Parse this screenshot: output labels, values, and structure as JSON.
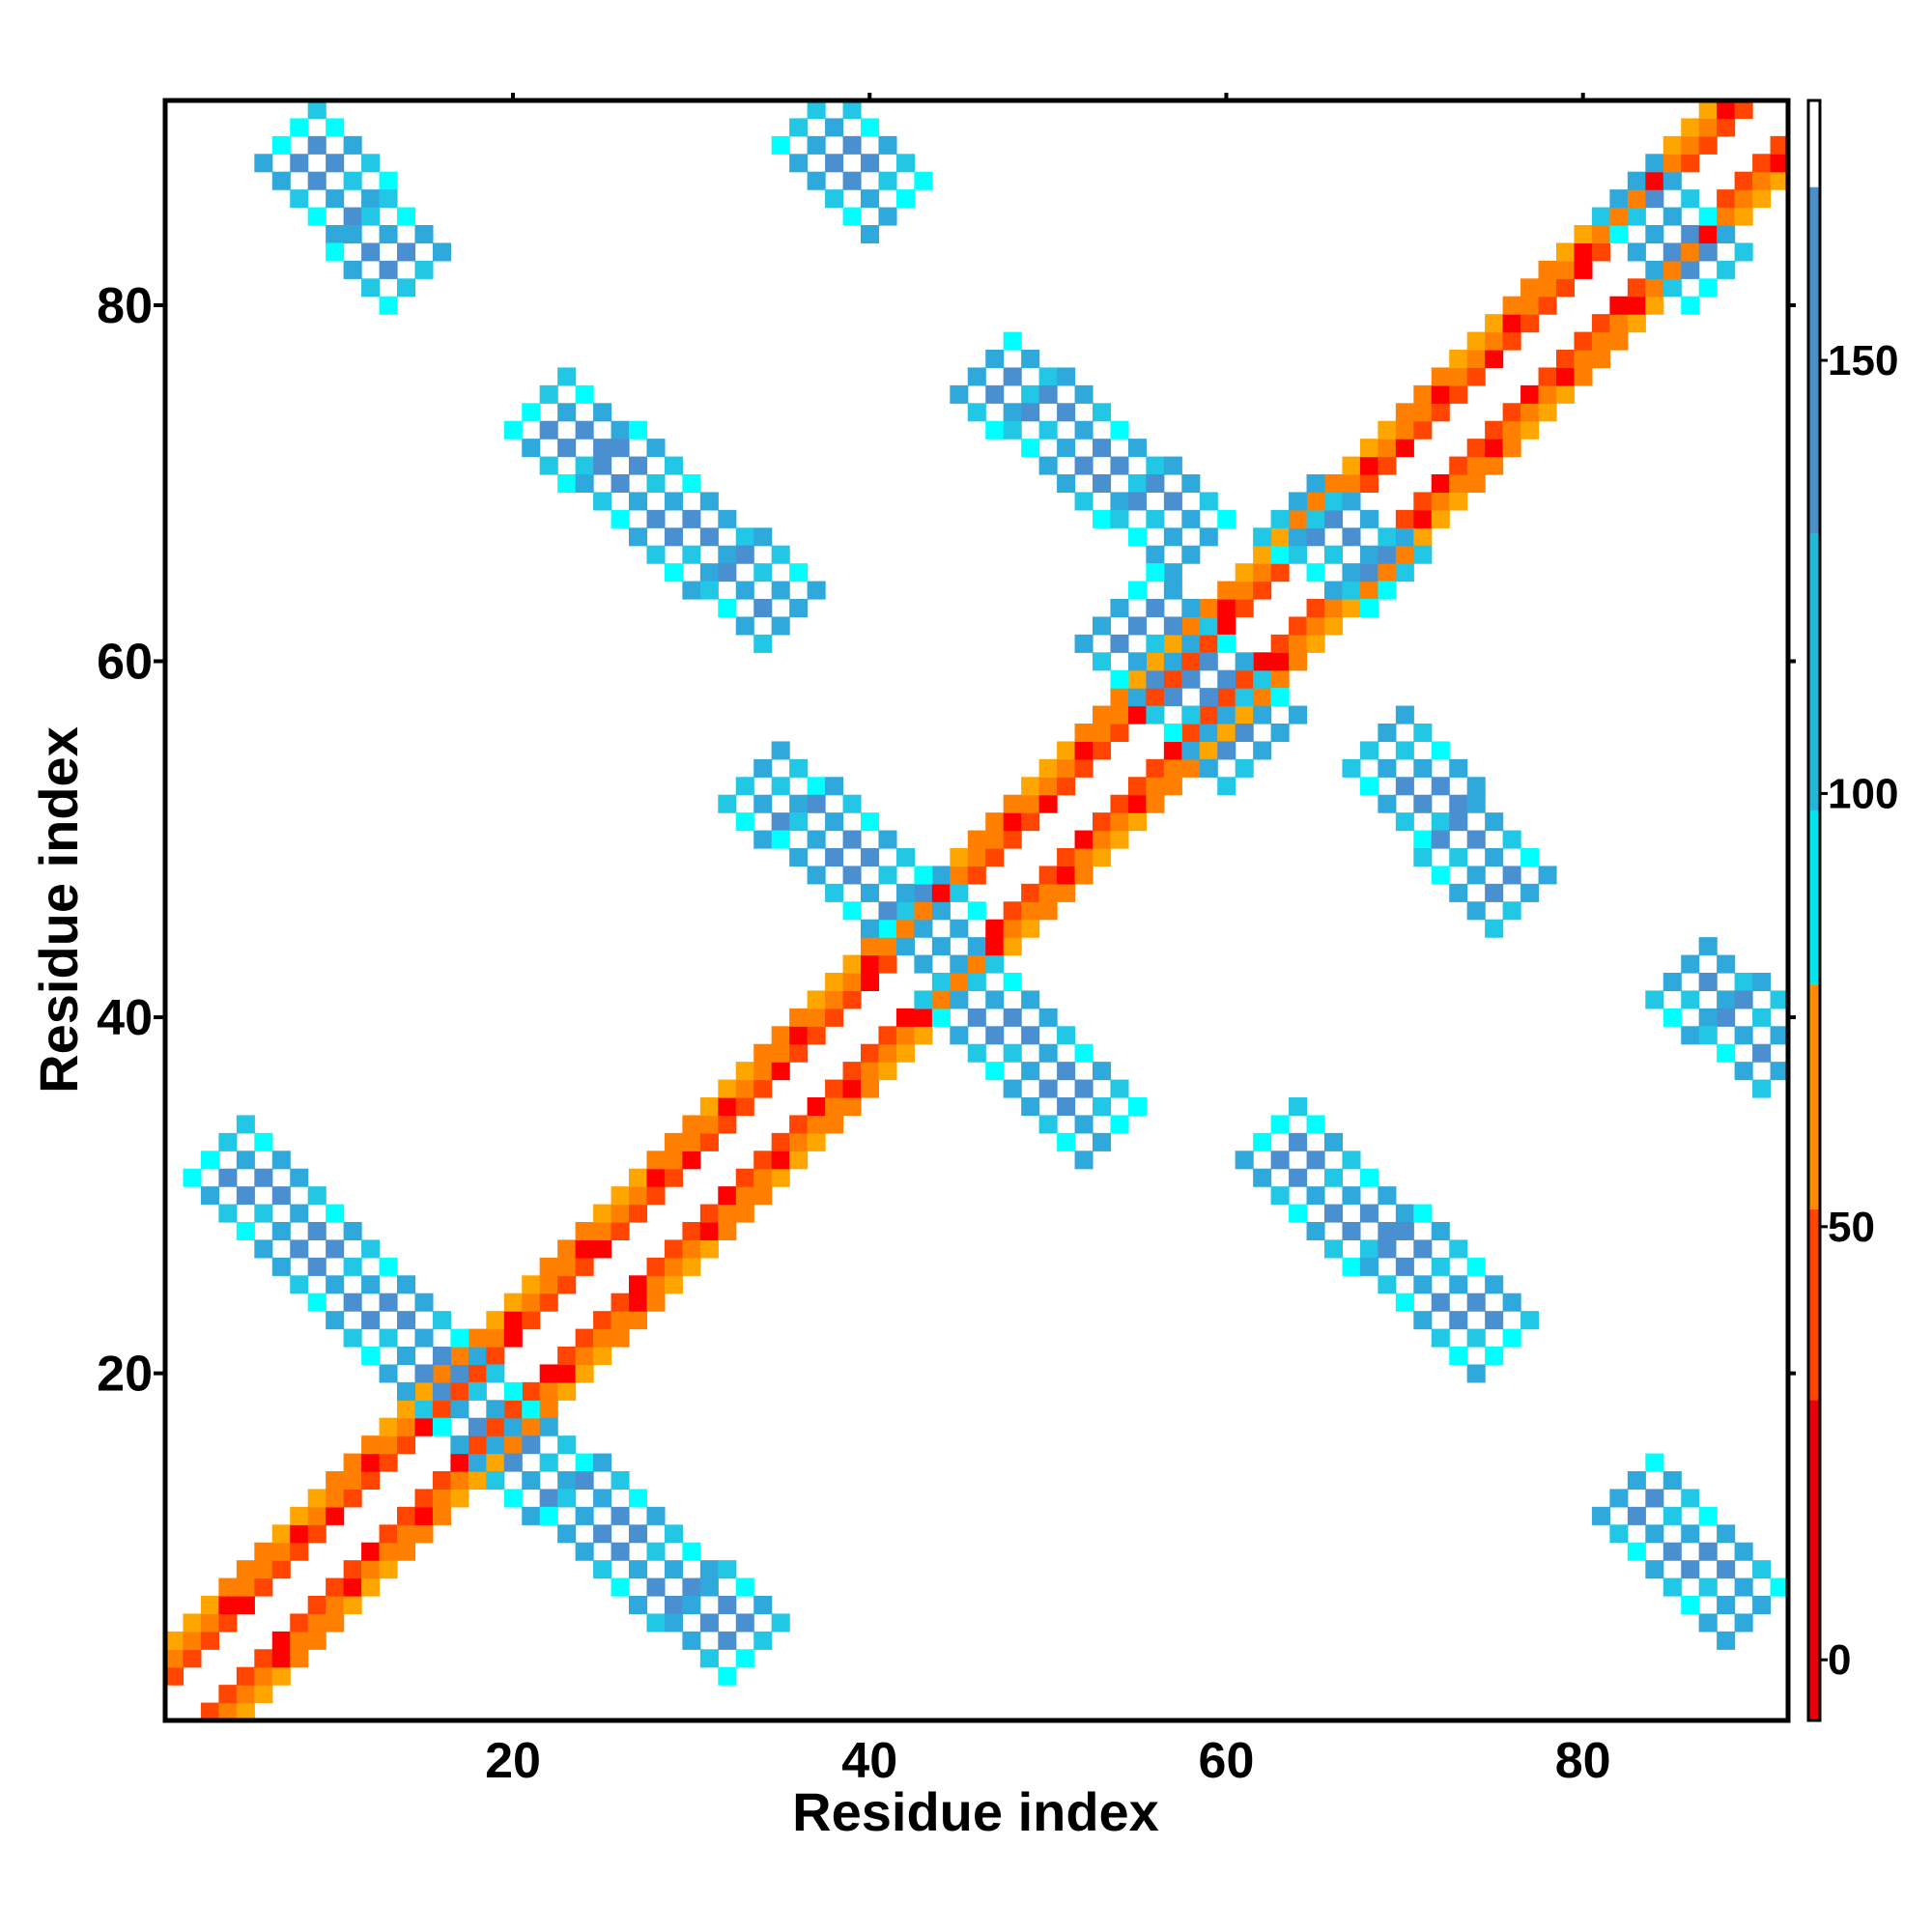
{
  "chart_data": {
    "type": "heatmap",
    "title": "",
    "xlabel": "Residue index",
    "ylabel": "Residue index",
    "xlim": [
      0.5,
      91.5
    ],
    "ylim": [
      0.5,
      91.5
    ],
    "x_ticks": [
      20,
      40,
      60,
      80
    ],
    "y_ticks": [
      20,
      40,
      60,
      80
    ],
    "grid": false,
    "colorbar": {
      "ticks": [
        0,
        50,
        100,
        150
      ],
      "range": [
        -7,
        180
      ],
      "segments": [
        {
          "from": -7,
          "to": 30,
          "color": "#e8000b"
        },
        {
          "from": 30,
          "to": 52,
          "color": "#ff4500"
        },
        {
          "from": 52,
          "to": 78,
          "color": "#ff8c00"
        },
        {
          "from": 78,
          "to": 98,
          "color": "#00e5ee"
        },
        {
          "from": 98,
          "to": 130,
          "color": "#22b8d8"
        },
        {
          "from": 130,
          "to": 170,
          "color": "#4a8fc8"
        },
        {
          "from": 170,
          "to": 180,
          "color": "#ffffff"
        }
      ]
    },
    "color_levels": {
      "red": "#ff0000",
      "orange_red": "#ff4500",
      "orange": "#ff8000",
      "amber": "#ffa500",
      "cyan": "#00ffff",
      "sky": "#23c7e6",
      "steel": "#2fa8dc",
      "blue": "#4a90d0"
    },
    "regions": {
      "diagonal_band": {
        "from": 1,
        "to": 91,
        "offsets": [
          2,
          3,
          4
        ]
      },
      "antiparallel_strands": [
        {
          "start": [
            2,
            31
          ],
          "end": [
            18,
            15
          ],
          "width": 4
        },
        {
          "start": [
            18,
            15
          ],
          "end": [
            32,
            3
          ],
          "width": 4
        },
        {
          "start": [
            20,
            73
          ],
          "end": [
            34,
            61
          ],
          "width": 4
        },
        {
          "start": [
            32,
            52
          ],
          "end": [
            43,
            43
          ],
          "width": 4
        },
        {
          "start": [
            43,
            41
          ],
          "end": [
            52,
            32
          ],
          "width": 4
        },
        {
          "start": [
            45,
            75
          ],
          "end": [
            57,
            65
          ],
          "width": 4
        },
        {
          "start": [
            61,
            32
          ],
          "end": [
            74,
            20
          ],
          "width": 4
        },
        {
          "start": [
            67,
            54
          ],
          "end": [
            75,
            45
          ],
          "width": 4
        },
        {
          "start": [
            84,
            41
          ],
          "end": [
            90,
            36
          ],
          "width": 4
        },
        {
          "start": [
            81,
            12
          ],
          "end": [
            88,
            5
          ],
          "width": 4
        },
        {
          "start": [
            6,
            88
          ],
          "end": [
            13,
            80
          ],
          "width": 4
        },
        {
          "start": [
            35,
            89
          ],
          "end": [
            40,
            84
          ],
          "width": 4
        },
        {
          "start": [
            52,
            61
          ],
          "end": [
            60,
            53
          ],
          "width": 5
        },
        {
          "start": [
            62,
            67
          ],
          "end": [
            68,
            63
          ],
          "width": 4
        },
        {
          "start": [
            81,
            85
          ],
          "end": [
            86,
            80
          ],
          "width": 4
        }
      ]
    }
  }
}
